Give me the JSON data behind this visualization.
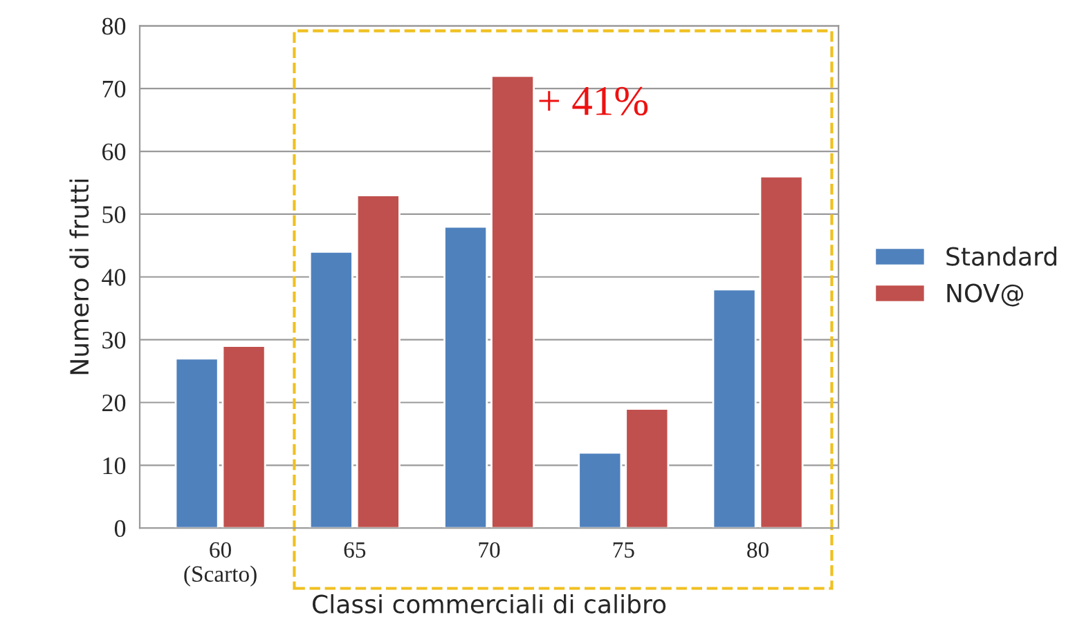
{
  "chart_data": {
    "type": "bar",
    "xlabel": "Classi commerciali di calibro",
    "ylabel": "Numero di frutti",
    "categories": [
      "60\n(Scarto)",
      "65",
      "70",
      "75",
      "80"
    ],
    "series": [
      {
        "name": "Standard",
        "color": "#4f81bd",
        "values": [
          27,
          44,
          48,
          12,
          38
        ]
      },
      {
        "name": "NOV@",
        "color": "#c0504d",
        "values": [
          29,
          53,
          72,
          19,
          56
        ]
      }
    ],
    "annotations": [
      {
        "text": "+ 41%",
        "x": "70",
        "y": 72
      }
    ],
    "ylim": [
      0,
      80
    ],
    "yticks": [
      0,
      10,
      20,
      30,
      40,
      50,
      60,
      70,
      80
    ],
    "grid": "y",
    "legend": "right"
  }
}
